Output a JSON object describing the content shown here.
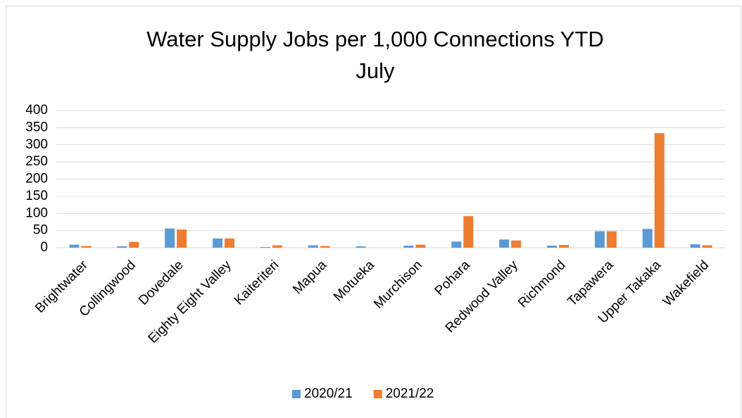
{
  "chart_data": {
    "type": "bar",
    "title": "Water Supply Jobs per 1,000 Connections YTD",
    "subtitle": "July",
    "categories": [
      "Brightwater",
      "Collingwood",
      "Dovedale",
      "Eighty Eight Valley",
      "Kaiteriteri",
      "Mapua",
      "Motueka",
      "Murchison",
      "Pohara",
      "Redwood Valley",
      "Richmond",
      "Tapawera",
      "Upper Takaka",
      "Wakefield"
    ],
    "series": [
      {
        "name": "2020/21",
        "color": "#5b9bd5",
        "values": [
          9,
          4,
          56,
          27,
          2,
          7,
          4,
          6,
          18,
          24,
          6,
          48,
          55,
          10
        ]
      },
      {
        "name": "2021/22",
        "color": "#ed7d31",
        "values": [
          5,
          17,
          53,
          27,
          7,
          5,
          0,
          9,
          92,
          21,
          8,
          48,
          334,
          7
        ]
      }
    ],
    "ylim": [
      0,
      400
    ],
    "yticks": [
      0,
      50,
      100,
      150,
      200,
      250,
      300,
      350,
      400
    ],
    "grid": true,
    "legend": "bottom"
  }
}
